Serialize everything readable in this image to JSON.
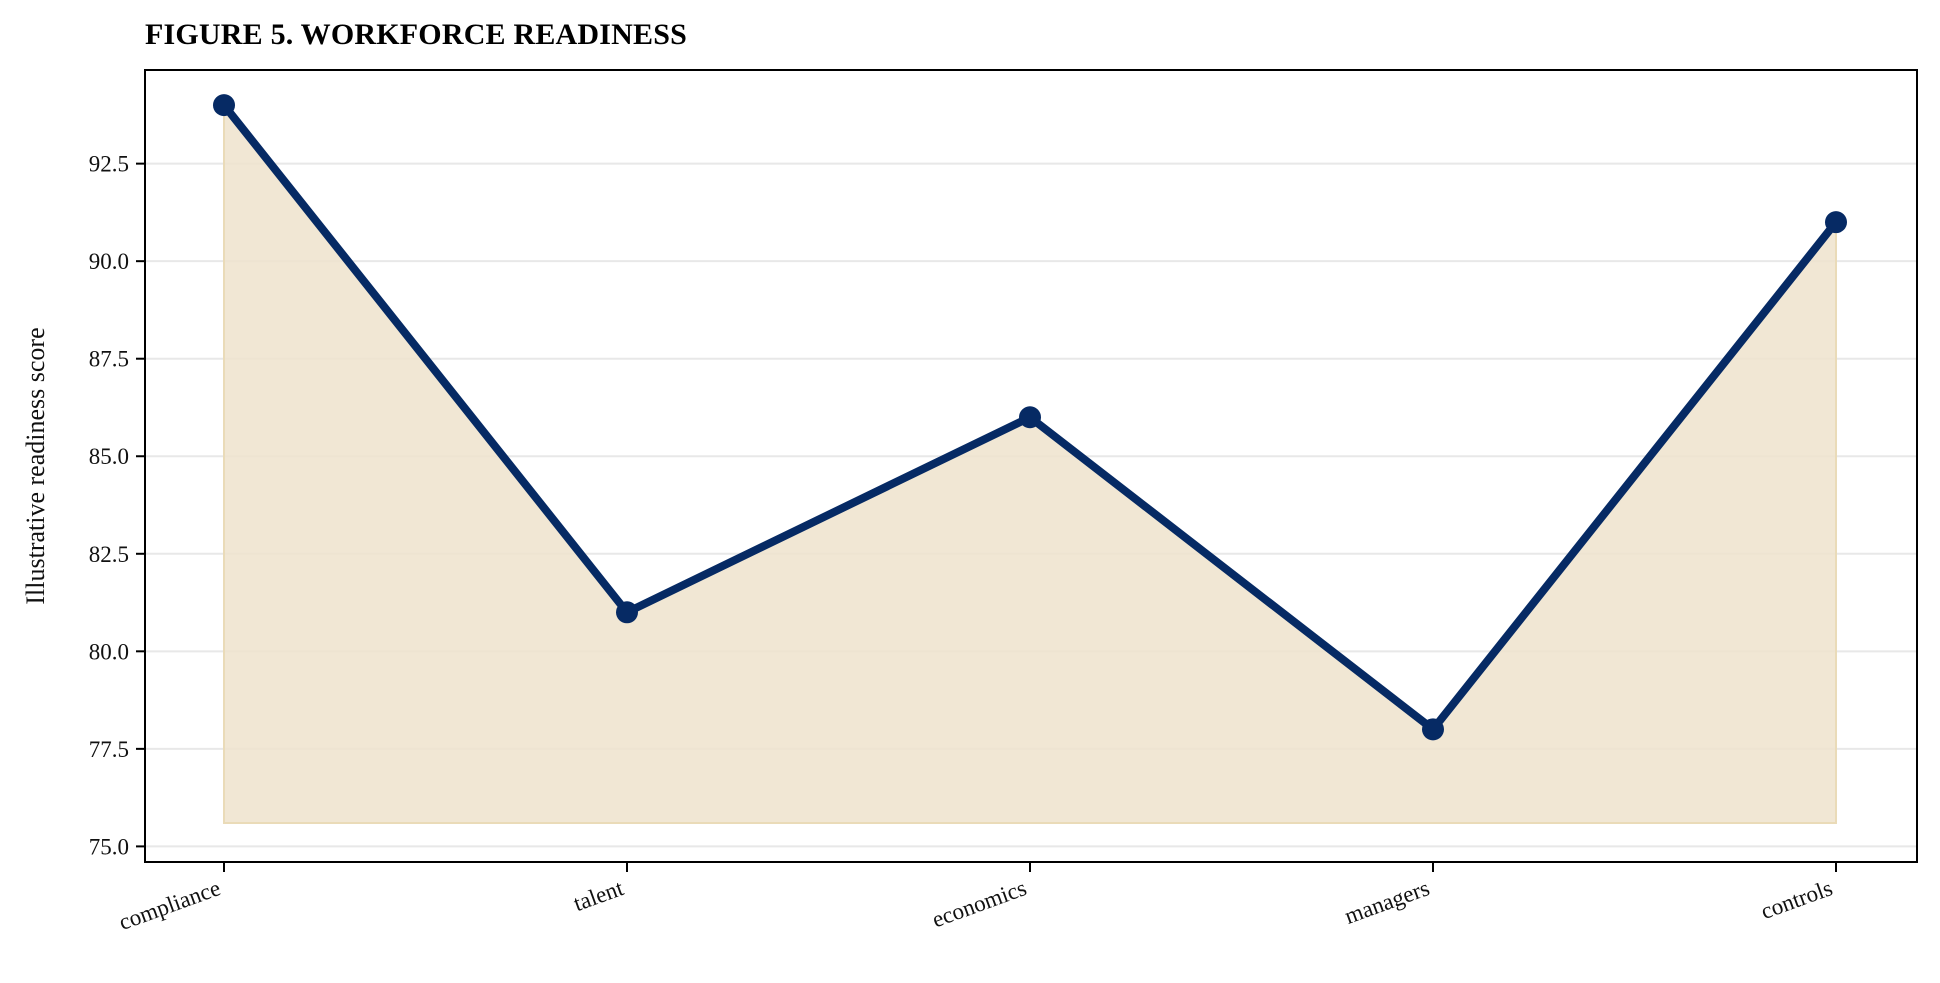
{
  "chart_data": {
    "type": "area",
    "title": "FIGURE 5. WORKFORCE READINESS",
    "xlabel": "",
    "ylabel": "Illustrative readiness score",
    "categories": [
      "compliance",
      "talent",
      "economics",
      "managers",
      "controls"
    ],
    "series": [
      {
        "values": [
          94,
          81,
          86,
          78,
          91
        ]
      }
    ],
    "fill_baseline": 75.6,
    "ylim": [
      74.6,
      94.9
    ],
    "yticks": [
      75.0,
      77.5,
      80.0,
      82.5,
      85.0,
      87.5,
      90.0,
      92.5
    ],
    "ytick_labels": [
      "75.0",
      "77.5",
      "80.0",
      "82.5",
      "85.0",
      "87.5",
      "90.0",
      "92.5"
    ],
    "grid": "horizontal",
    "legend": "none",
    "colors": {
      "line": "#062a64",
      "fill": "#efe3cc",
      "grid": "#e8e8e8",
      "axis": "#000000"
    }
  }
}
